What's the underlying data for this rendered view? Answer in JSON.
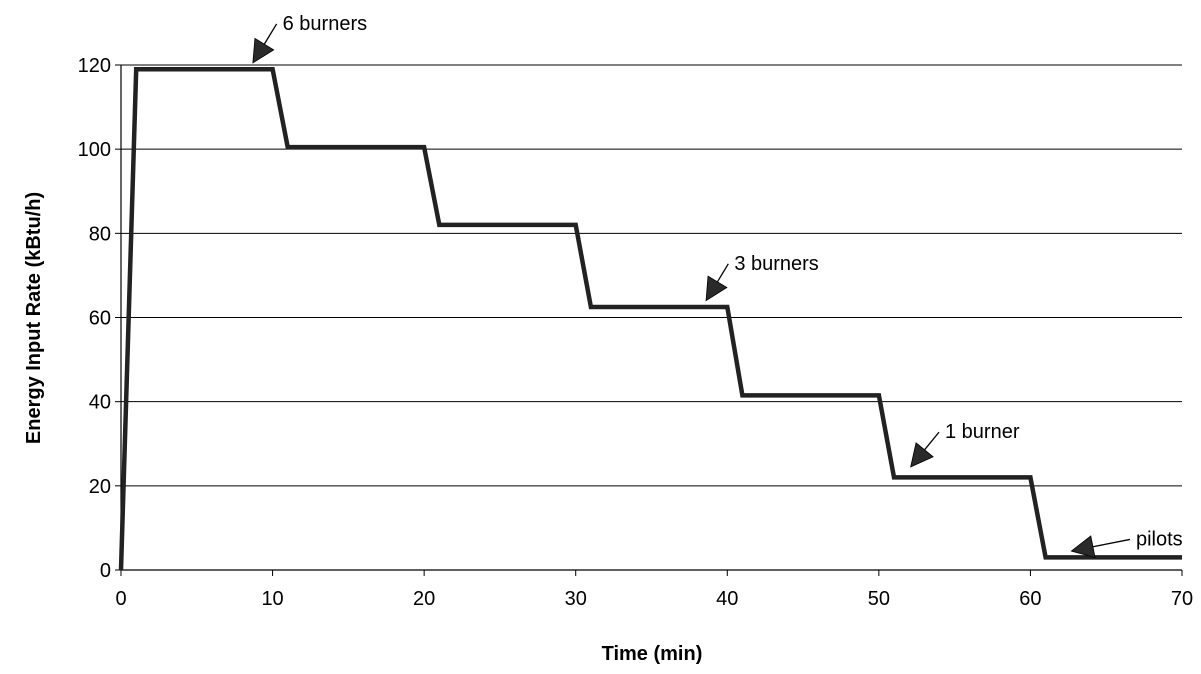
{
  "chart_data": {
    "type": "line",
    "title": "",
    "xlabel": "Time (min)",
    "ylabel": "Energy Input Rate (kBtu/h)",
    "xlim": [
      0,
      70
    ],
    "ylim": [
      0,
      120
    ],
    "x_ticks": [
      0,
      10,
      20,
      30,
      40,
      50,
      60,
      70
    ],
    "y_ticks": [
      0,
      20,
      40,
      60,
      80,
      100,
      120
    ],
    "grid": "horizontal",
    "legend": "none",
    "series": [
      {
        "color": "#222222",
        "points": [
          {
            "x": 0,
            "y": 0
          },
          {
            "x": 1,
            "y": 119
          },
          {
            "x": 10,
            "y": 119
          },
          {
            "x": 11,
            "y": 100.5
          },
          {
            "x": 20,
            "y": 100.5
          },
          {
            "x": 21,
            "y": 82
          },
          {
            "x": 30,
            "y": 82
          },
          {
            "x": 31,
            "y": 62.5
          },
          {
            "x": 40,
            "y": 62.5
          },
          {
            "x": 41,
            "y": 41.5
          },
          {
            "x": 50,
            "y": 41.5
          },
          {
            "x": 51,
            "y": 22
          },
          {
            "x": 60,
            "y": 22
          },
          {
            "x": 61,
            "y": 3
          },
          {
            "x": 70,
            "y": 3
          }
        ]
      }
    ],
    "annotations": [
      {
        "text": "6 burners",
        "point_x": 8.7,
        "point_y": 120.5,
        "label_x": 10.4,
        "label_y": 130
      },
      {
        "text": "3 burners",
        "point_x": 38.6,
        "point_y": 64,
        "label_x": 40.2,
        "label_y": 73
      },
      {
        "text": "1 burner",
        "point_x": 52.1,
        "point_y": 24.5,
        "label_x": 54.1,
        "label_y": 33
      },
      {
        "text": "pilots",
        "point_x": 62.7,
        "point_y": 4.5,
        "label_x": 66.7,
        "label_y": 7.5
      }
    ]
  }
}
